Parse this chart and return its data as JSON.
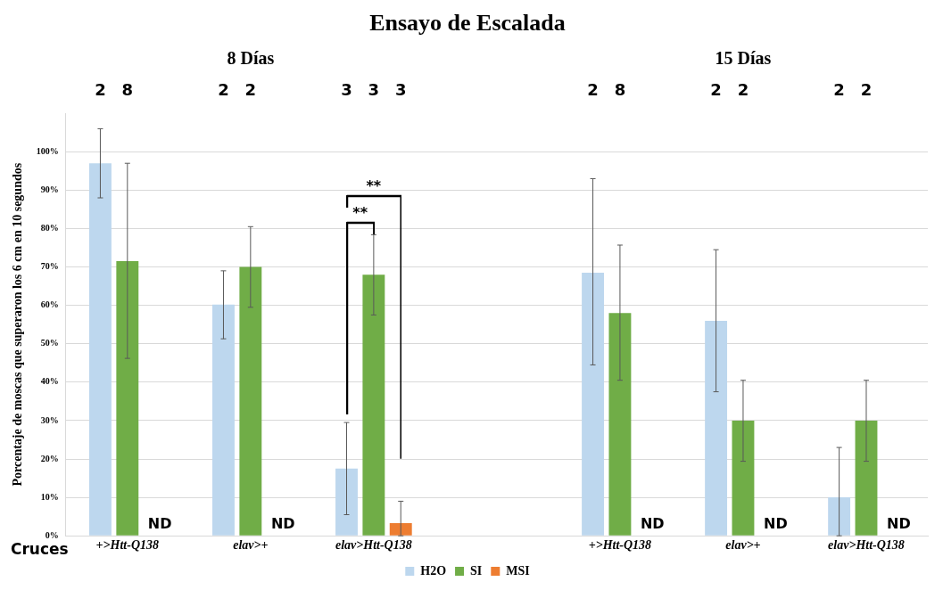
{
  "chart_data": {
    "type": "bar",
    "title": "Ensayo de Escalada",
    "ylabel": "Porcentaje de moscas que superaron los 6 cm en 10 segundos",
    "categories": [
      "+>Htt-Q138",
      "elav>+",
      "elav>Htt-Q138",
      null,
      "+>Htt-Q138",
      "elav>+",
      "elav>Htt-Q138"
    ],
    "series": [
      {
        "name": "H2O",
        "color": "#bdd7ee",
        "values": [
          97,
          60.2,
          17.5,
          null,
          68.5,
          56,
          10
        ],
        "errors": [
          [
            88,
            106
          ],
          [
            51.3,
            69
          ],
          [
            5.5,
            29.5
          ],
          null,
          [
            44.5,
            93
          ],
          [
            37.5,
            74.5
          ],
          [
            0,
            23
          ]
        ]
      },
      {
        "name": "SI",
        "color": "#70ad47",
        "values": [
          71.5,
          70,
          68,
          null,
          58,
          30,
          30
        ],
        "errors": [
          [
            46.2,
            97
          ],
          [
            59.5,
            80.5
          ],
          [
            57.5,
            78.4
          ],
          null,
          [
            40.5,
            75.7
          ],
          [
            19.4,
            40.5
          ],
          [
            19.4,
            40.5
          ]
        ]
      },
      {
        "name": "MSI",
        "color": "#ed7d31",
        "values": [
          null,
          null,
          3.3,
          null,
          null,
          null,
          null
        ],
        "errors": [
          null,
          null,
          [
            0,
            9
          ],
          null,
          null,
          null,
          null
        ],
        "value_labels": [
          "ND",
          "ND",
          null,
          null,
          "ND",
          "ND",
          "ND"
        ]
      }
    ],
    "ylim": [
      0,
      110
    ],
    "yticks": [
      {
        "value": 0,
        "label": "0%"
      },
      {
        "value": 10,
        "label": "10%"
      },
      {
        "value": 20,
        "label": "20%"
      },
      {
        "value": 30,
        "label": "30%"
      },
      {
        "value": 40,
        "label": "40%"
      },
      {
        "value": 50,
        "label": "50%"
      },
      {
        "value": 60,
        "label": "60%"
      },
      {
        "value": 70,
        "label": "70%"
      },
      {
        "value": 80,
        "label": "80%"
      },
      {
        "value": 90,
        "label": "90%"
      },
      {
        "value": 100,
        "label": "100%"
      }
    ],
    "grid": "y",
    "legend": "bottom",
    "annotations": [
      "8 Días",
      "15 Días",
      "2",
      "8",
      "2",
      "2",
      "3",
      "3",
      "3",
      "2",
      "8",
      "2",
      "2",
      "2",
      "2",
      "**",
      "**",
      "Cruces"
    ]
  }
}
